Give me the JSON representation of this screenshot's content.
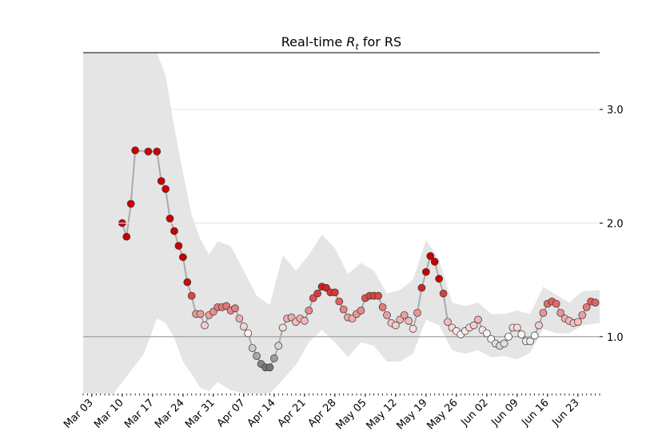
{
  "chart_data": {
    "type": "line",
    "title": {
      "prefix": "Real-time",
      "symbol": "R",
      "subscript": "t",
      "suffix": "for RS"
    },
    "x": [
      "Mar 10",
      "Mar 11",
      "Mar 12",
      "Mar 13",
      "Mar 16",
      "Mar 18",
      "Mar 19",
      "Mar 20",
      "Mar 21",
      "Mar 22",
      "Mar 23",
      "Mar 24",
      "Mar 25",
      "Mar 26",
      "Mar 27",
      "Mar 28",
      "Mar 29",
      "Mar 30",
      "Mar 31",
      "Apr 01",
      "Apr 02",
      "Apr 03",
      "Apr 04",
      "Apr 05",
      "Apr 06",
      "Apr 07",
      "Apr 08",
      "Apr 09",
      "Apr 10",
      "Apr 11",
      "Apr 12",
      "Apr 13",
      "Apr 14",
      "Apr 15",
      "Apr 16",
      "Apr 17",
      "Apr 18",
      "Apr 19",
      "Apr 20",
      "Apr 21",
      "Apr 22",
      "Apr 23",
      "Apr 24",
      "Apr 25",
      "Apr 26",
      "Apr 27",
      "Apr 28",
      "Apr 29",
      "Apr 30",
      "May 01",
      "May 02",
      "May 03",
      "May 04",
      "May 05",
      "May 06",
      "May 07",
      "May 08",
      "May 09",
      "May 10",
      "May 11",
      "May 12",
      "May 13",
      "May 14",
      "May 15",
      "May 16",
      "May 17",
      "May 18",
      "May 19",
      "May 20",
      "May 21",
      "May 22",
      "May 23",
      "May 24",
      "May 25",
      "May 26",
      "May 27",
      "May 28",
      "May 29",
      "May 30",
      "May 31",
      "Jun 01",
      "Jun 02",
      "Jun 03",
      "Jun 04",
      "Jun 05",
      "Jun 06",
      "Jun 07",
      "Jun 08",
      "Jun 09",
      "Jun 10",
      "Jun 11",
      "Jun 12",
      "Jun 13",
      "Jun 14",
      "Jun 15",
      "Jun 16",
      "Jun 17",
      "Jun 18",
      "Jun 19",
      "Jun 20",
      "Jun 21",
      "Jun 22",
      "Jun 23",
      "Jun 24",
      "Jun 25",
      "Jun 26",
      "Jun 27"
    ],
    "values": [
      2.0,
      1.88,
      2.17,
      2.64,
      2.63,
      2.63,
      2.37,
      2.3,
      2.04,
      1.93,
      1.8,
      1.7,
      1.48,
      1.36,
      1.2,
      1.2,
      1.1,
      1.19,
      1.22,
      1.26,
      1.26,
      1.27,
      1.23,
      1.25,
      1.16,
      1.09,
      1.03,
      0.9,
      0.83,
      0.76,
      0.73,
      0.73,
      0.81,
      0.92,
      1.08,
      1.16,
      1.17,
      1.13,
      1.16,
      1.14,
      1.23,
      1.34,
      1.38,
      1.44,
      1.43,
      1.39,
      1.39,
      1.31,
      1.24,
      1.17,
      1.16,
      1.2,
      1.23,
      1.34,
      1.36,
      1.36,
      1.36,
      1.26,
      1.19,
      1.12,
      1.1,
      1.15,
      1.19,
      1.14,
      1.07,
      1.21,
      1.43,
      1.57,
      1.71,
      1.66,
      1.51,
      1.38,
      1.13,
      1.08,
      1.05,
      1.02,
      1.05,
      1.08,
      1.1,
      1.15,
      1.06,
      1.03,
      0.98,
      0.94,
      0.92,
      0.94,
      1.0,
      1.08,
      1.08,
      1.02,
      0.96,
      0.96,
      1.01,
      1.1,
      1.21,
      1.29,
      1.31,
      1.29,
      1.21,
      1.16,
      1.14,
      1.12,
      1.13,
      1.19,
      1.26,
      1.31,
      1.3
    ],
    "line_color": "#aaaaaa",
    "cmap": [
      "#000000",
      "#ffffff",
      "#cc0000"
    ],
    "clim": [
      0.5,
      1.5
    ],
    "band": {
      "color": "#e5e5e5",
      "x": [
        "Mar 01",
        "Mar 08",
        "Mar 12",
        "Mar 15",
        "Mar 18",
        "Mar 20",
        "Mar 22",
        "Mar 24",
        "Mar 26",
        "Mar 28",
        "Mar 30",
        "Apr 01",
        "Apr 04",
        "Apr 07",
        "Apr 10",
        "Apr 13",
        "Apr 16",
        "Apr 19",
        "Apr 22",
        "Apr 25",
        "Apr 28",
        "May 01",
        "May 04",
        "May 07",
        "May 10",
        "May 13",
        "May 16",
        "May 19",
        "May 22",
        "May 25",
        "May 28",
        "May 31",
        "Jun 03",
        "Jun 06",
        "Jun 09",
        "Jun 12",
        "Jun 15",
        "Jun 18",
        "Jun 21",
        "Jun 24",
        "Jun 28"
      ],
      "lower": [
        0.5,
        0.5,
        0.7,
        0.85,
        1.16,
        1.12,
        0.99,
        0.78,
        0.67,
        0.55,
        0.52,
        0.6,
        0.53,
        0.5,
        0.5,
        0.5,
        0.62,
        0.75,
        0.95,
        1.06,
        0.95,
        0.82,
        0.95,
        0.92,
        0.78,
        0.78,
        0.85,
        1.15,
        1.1,
        0.88,
        0.85,
        0.88,
        0.82,
        0.83,
        0.8,
        0.86,
        1.07,
        1.03,
        1.03,
        1.1,
        1.12
      ],
      "upper": [
        3.5,
        3.5,
        3.5,
        3.5,
        3.5,
        3.3,
        2.84,
        2.45,
        2.07,
        1.86,
        1.72,
        1.84,
        1.8,
        1.58,
        1.36,
        1.28,
        1.72,
        1.58,
        1.72,
        1.9,
        1.78,
        1.55,
        1.65,
        1.58,
        1.38,
        1.41,
        1.5,
        1.85,
        1.68,
        1.3,
        1.27,
        1.3,
        1.2,
        1.2,
        1.23,
        1.2,
        1.44,
        1.37,
        1.3,
        1.4,
        1.41
      ]
    },
    "hline": 1,
    "xlim": [
      "Mar 01",
      "Jun 28"
    ],
    "xticks": [
      "Mar 03",
      "Mar 10",
      "Mar 17",
      "Mar 24",
      "Mar 31",
      "Apr 07",
      "Apr 14",
      "Apr 21",
      "Apr 28",
      "May 05",
      "May 12",
      "May 19",
      "May 26",
      "Jun 02",
      "Jun 09",
      "Jun 16",
      "Jun 23"
    ],
    "ylim": [
      0.5,
      3.5
    ],
    "yticks": [
      {
        "value": 1,
        "label": "1.0"
      },
      {
        "value": 2,
        "label": "2.0"
      },
      {
        "value": 3,
        "label": "3.0"
      }
    ],
    "grid": true
  }
}
